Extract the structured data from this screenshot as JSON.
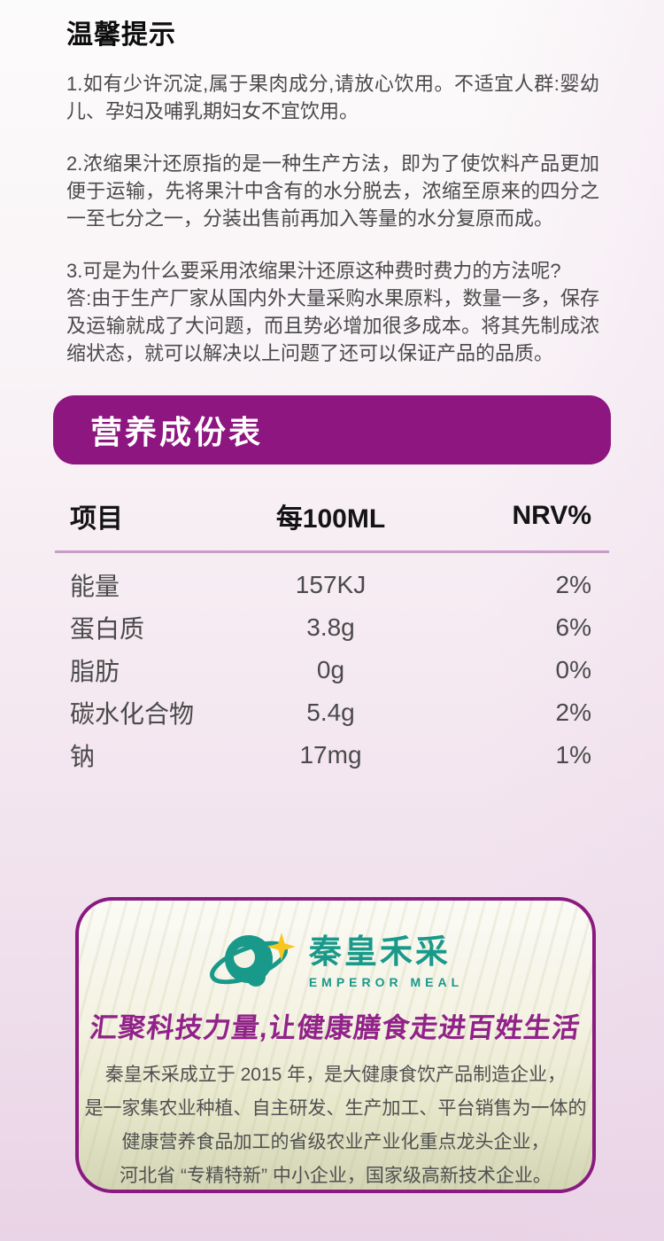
{
  "tips": {
    "title": "温馨提示",
    "paragraphs": [
      "1.如有少许沉淀,属于果肉成分,请放心饮用。不适宜人群:婴幼儿、孕妇及哺乳期妇女不宜饮用。",
      "2.浓缩果汁还原指的是一种生产方法，即为了使饮料产品更加便于运输，先将果汁中含有的水分脱去，浓缩至原来的四分之一至七分之一，分装出售前再加入等量的水分复原而成。",
      "3.可是为什么要采用浓缩果汁还原这种费时费力的方法呢?\n答:由于生产厂家从国内外大量采购水果原料，数量一多，保存及运输就成了大问题，而且势必增加很多成本。将其先制成浓缩状态，就可以解决以上问题了还可以保证产品的品质。"
    ]
  },
  "nutrition": {
    "banner_title": "营养成份表",
    "columns": [
      "项目",
      "每100ML",
      "NRV%"
    ],
    "rows": [
      {
        "item": "能量",
        "per100ml": "157KJ",
        "nrv": "2%"
      },
      {
        "item": "蛋白质",
        "per100ml": "3.8g",
        "nrv": "6%"
      },
      {
        "item": "脂肪",
        "per100ml": "0g",
        "nrv": "0%"
      },
      {
        "item": "碳水化合物",
        "per100ml": "5.4g",
        "nrv": "2%"
      },
      {
        "item": "钠",
        "per100ml": "17mg",
        "nrv": "1%"
      }
    ]
  },
  "company": {
    "logo_cn": "秦皇禾采",
    "logo_en": "EMPEROR MEAL",
    "slogan": "汇聚科技力量,让健康膳食走进百姓生活",
    "description_lines": [
      "秦皇禾采成立于 2015 年，是大健康食饮产品制造企业，",
      "是一家集农业种植、自主研发、生产加工、平台销售为一体的",
      "健康营养食品加工的省级农业产业化重点龙头企业，",
      "河北省 “专精特新” 中小企业，国家级高新技术企业。"
    ]
  },
  "colors": {
    "banner_purple": "#8d1680",
    "divider_mauve": "#c79cc8",
    "teal": "#18998a",
    "slogan_purple": "#912289",
    "card_border": "#8a1a80",
    "star_yellow": "#f8c61e"
  }
}
